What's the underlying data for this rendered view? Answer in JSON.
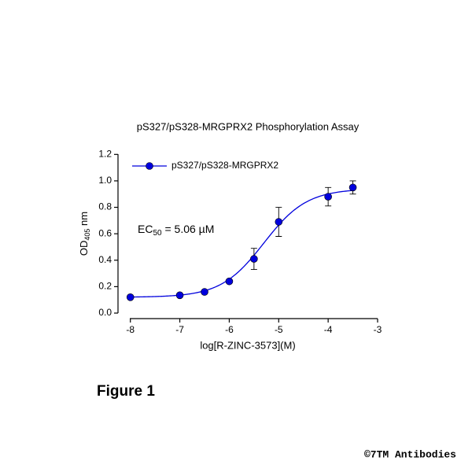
{
  "chart_data": {
    "type": "scatter",
    "title": "pS327/pS328-MRGPRX2 Phosphorylation Assay",
    "x_label": "log[R-ZINC-3573](M)",
    "y_label": {
      "main": "OD",
      "sub": "405",
      "unit": " nm"
    },
    "annotation": {
      "main": "EC",
      "sub": "50",
      "rest": " = 5.06 µM"
    },
    "xlim": [
      -8.25,
      -3
    ],
    "xticks": [
      -8,
      -7,
      -6,
      -5,
      -4,
      -3
    ],
    "ylim": [
      0,
      1.2
    ],
    "yticks": [
      {
        "value": 0,
        "label": "0.0"
      },
      {
        "value": 0.2,
        "label": "0.2"
      },
      {
        "value": 0.4,
        "label": "0.4"
      },
      {
        "value": 0.6,
        "label": "0.6"
      },
      {
        "value": 0.8,
        "label": "0.8"
      },
      {
        "value": 1.0,
        "label": "1.0"
      },
      {
        "value": 1.2,
        "label": "1.2"
      }
    ],
    "series": [
      {
        "name": "pS327/pS328-MRGPRX2",
        "color": "#0000dd",
        "x": [
          -8,
          -7,
          -6.5,
          -6,
          -5.5,
          -5,
          -4,
          -3.5
        ],
        "values": [
          0.12,
          0.135,
          0.16,
          0.24,
          0.41,
          0.69,
          0.88,
          0.95
        ],
        "errors": [
          0.005,
          0.005,
          0.01,
          0.01,
          0.08,
          0.11,
          0.07,
          0.05
        ]
      }
    ],
    "curve": {
      "bottom": 0.12,
      "top": 0.94,
      "log_ec50": -5.3,
      "hill": 1.0
    }
  },
  "figure_label": "Figure 1",
  "copyright": "©7TM Antibodies"
}
